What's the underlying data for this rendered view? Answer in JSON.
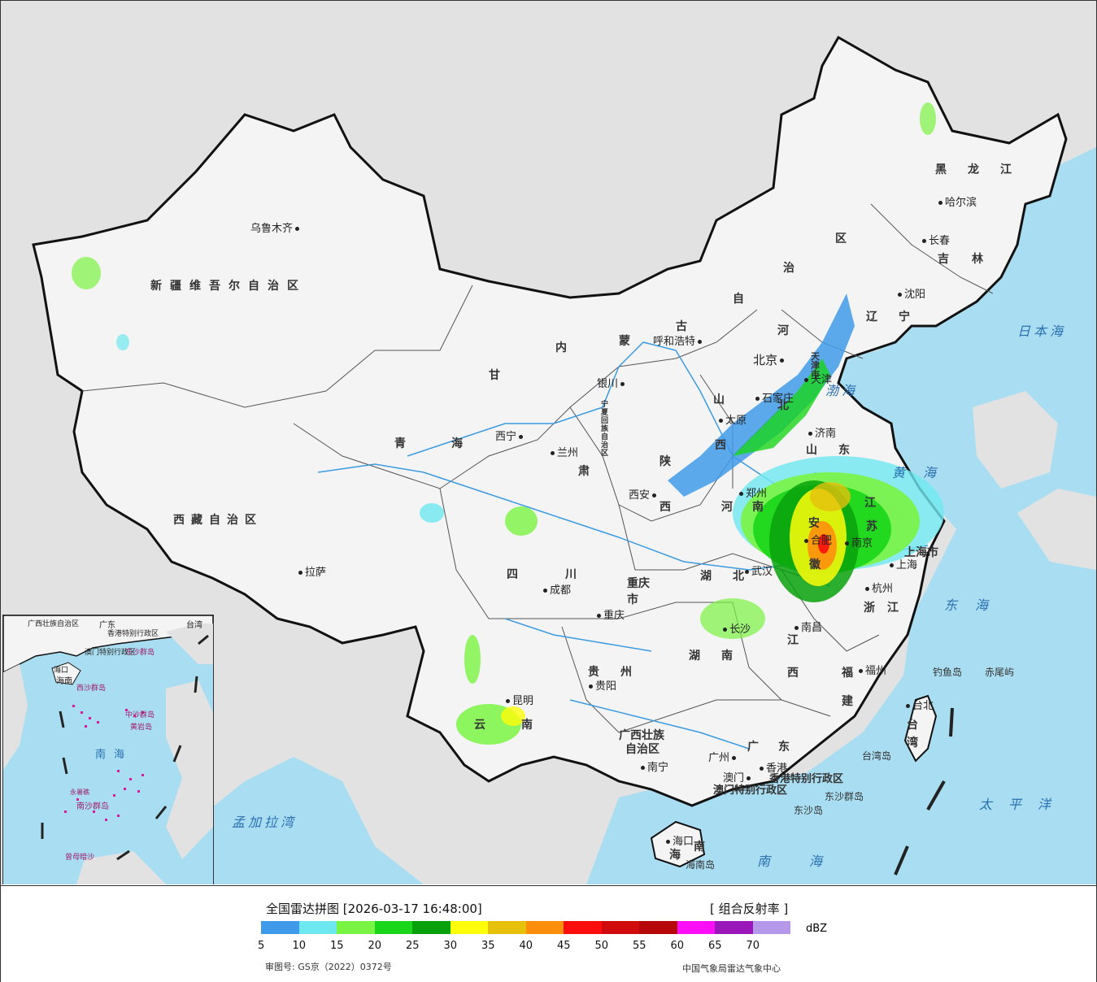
{
  "legend": {
    "title": "全国雷达拼图 [2026-03-17 16:48:00]",
    "product": "[ 组合反射率 ]",
    "unit": "dBZ",
    "review_number": "审图号: GS京（2022）0372号",
    "source": "中国气象局雷达气象中心",
    "ticks": [
      "5",
      "10",
      "15",
      "20",
      "25",
      "30",
      "35",
      "40",
      "45",
      "50",
      "55",
      "60",
      "65",
      "70"
    ],
    "colors": [
      "#3f9be9",
      "#6ee8f0",
      "#7af442",
      "#19d61a",
      "#08a10c",
      "#fefe0b",
      "#e6c10c",
      "#fe8f0c",
      "#fb0d0d",
      "#d10b0b",
      "#b60808",
      "#fc0ef8",
      "#9a17b9",
      "#b698ea"
    ]
  },
  "map": {
    "colors": {
      "land": "#f4f4f4",
      "sea": "#a9def2",
      "foreign": "#e2e2e2",
      "border": "#111111",
      "river": "#3b9be0"
    },
    "cities": [
      {
        "name": "乌鲁木齐",
        "dot": "after"
      },
      {
        "name": "拉萨",
        "dot": "before"
      },
      {
        "name": "西宁",
        "dot": "after"
      },
      {
        "name": "兰州",
        "dot": "before"
      },
      {
        "name": "银川",
        "dot": "after"
      },
      {
        "name": "呼和浩特",
        "dot": "after"
      },
      {
        "name": "北京",
        "dot": "after"
      },
      {
        "name": "天津",
        "dot": "before"
      },
      {
        "name": "石家庄",
        "dot": "before"
      },
      {
        "name": "太原",
        "dot": "before"
      },
      {
        "name": "济南",
        "dot": "before"
      },
      {
        "name": "郑州",
        "dot": "before"
      },
      {
        "name": "西安",
        "dot": "after"
      },
      {
        "name": "成都",
        "dot": "before"
      },
      {
        "name": "重庆",
        "dot": "before"
      },
      {
        "name": "武汉",
        "dot": "before"
      },
      {
        "name": "合肥",
        "dot": "before"
      },
      {
        "name": "南京",
        "dot": "before"
      },
      {
        "name": "上海",
        "dot": "before"
      },
      {
        "name": "杭州",
        "dot": "before"
      },
      {
        "name": "长沙",
        "dot": "before"
      },
      {
        "name": "南昌",
        "dot": "before"
      },
      {
        "name": "福州",
        "dot": "before"
      },
      {
        "name": "贵阳",
        "dot": "before"
      },
      {
        "name": "昆明",
        "dot": "before"
      },
      {
        "name": "南宁",
        "dot": "before"
      },
      {
        "name": "广州",
        "dot": "after"
      },
      {
        "name": "香港",
        "dot": "before"
      },
      {
        "name": "澳门",
        "dot": "after"
      },
      {
        "name": "海口",
        "dot": "before"
      },
      {
        "name": "台北",
        "dot": "before"
      },
      {
        "name": "沈阳",
        "dot": "before"
      },
      {
        "name": "长春",
        "dot": "before"
      },
      {
        "name": "哈尔滨",
        "dot": "before"
      }
    ],
    "provinces": [
      "新疆维吾尔自治区",
      "西藏自治区",
      "青海",
      "甘",
      "肃",
      "内",
      "蒙",
      "古",
      "自",
      "治",
      "区",
      "宁夏回族自治区",
      "陕",
      "西",
      "山",
      "西",
      "河",
      "北",
      "山",
      "东",
      "河",
      "南",
      "江",
      "苏",
      "安",
      "徽",
      "浙",
      "江",
      "湖",
      "北",
      "湖",
      "南",
      "江",
      "西",
      "福",
      "建",
      "四",
      "川",
      "重庆市",
      "贵",
      "州",
      "云",
      "南",
      "广西壮族",
      "自治区",
      "广",
      "东",
      "海",
      "南",
      "台",
      "湾",
      "黑",
      "龙",
      "江",
      "吉",
      "林",
      "辽",
      "宁",
      "天津市",
      "上海市",
      "香港特别行政区",
      "澳门特别行政区"
    ],
    "seas": [
      "渤海",
      "黄海",
      "东海",
      "南海",
      "日本海",
      "太平洋",
      "孟加拉湾"
    ],
    "islands": [
      "钓鱼岛",
      "赤尾屿",
      "台湾岛",
      "东沙群岛",
      "东沙岛",
      "海南岛"
    ],
    "inset_labels": [
      "广西壮族自治区",
      "广东",
      "香港特别行政区",
      "澳门特别行政区",
      "台湾",
      "海口",
      "海南",
      "东沙群岛",
      "西沙群岛",
      "中沙群岛",
      "黄岩岛",
      "南海",
      "南沙群岛",
      "曾母暗沙",
      "永暑礁"
    ]
  }
}
